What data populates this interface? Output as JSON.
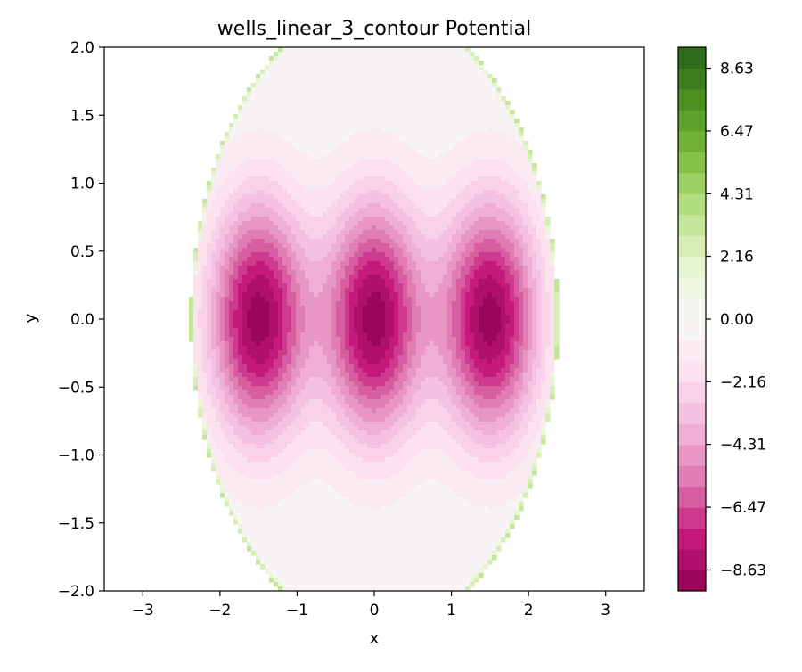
{
  "chart_data": {
    "type": "heatmap",
    "subtype": "filled-contour",
    "title": "wells_linear_3_contour Potential",
    "xlabel": "x",
    "ylabel": "y",
    "xlim": [
      -3.5,
      3.5
    ],
    "ylim": [
      -2.0,
      2.0
    ],
    "x_ticks": [
      -3,
      -2,
      -1,
      0,
      1,
      2,
      3
    ],
    "x_tick_labels": [
      "−3",
      "−2",
      "−1",
      "0",
      "1",
      "2",
      "3"
    ],
    "y_ticks": [
      2.0,
      1.5,
      1.0,
      0.5,
      0.0,
      -0.5,
      -1.0,
      -1.5,
      -2.0
    ],
    "y_tick_labels": [
      "2.0",
      "1.5",
      "1.0",
      "0.5",
      "0.0",
      "−0.5",
      "−1.0",
      "−1.5",
      "−2.0"
    ],
    "grid": false,
    "colormap": "PiYG",
    "colorbar": {
      "range": [
        -9.35,
        9.35
      ],
      "levels": 26,
      "ticks": [
        8.63,
        6.47,
        4.31,
        2.16,
        0.0,
        -2.16,
        -4.31,
        -6.47,
        -8.63
      ],
      "tick_labels": [
        "8.63",
        "6.47",
        "4.31",
        "2.16",
        "0.00",
        "−2.16",
        "−4.31",
        "−6.47",
        "−8.63"
      ]
    },
    "domain_boundary": {
      "shape": "ellipse",
      "semi_axis_x": 2.38,
      "semi_axis_y": 2.32
    },
    "wells": [
      {
        "x": -1.5,
        "y": 0.0,
        "depth": -9.0
      },
      {
        "x": 0.0,
        "y": 0.0,
        "depth": -9.0
      },
      {
        "x": 1.5,
        "y": 0.0,
        "depth": -9.0
      }
    ],
    "well_width": {
      "sx": 0.45,
      "sy": 0.62
    }
  }
}
